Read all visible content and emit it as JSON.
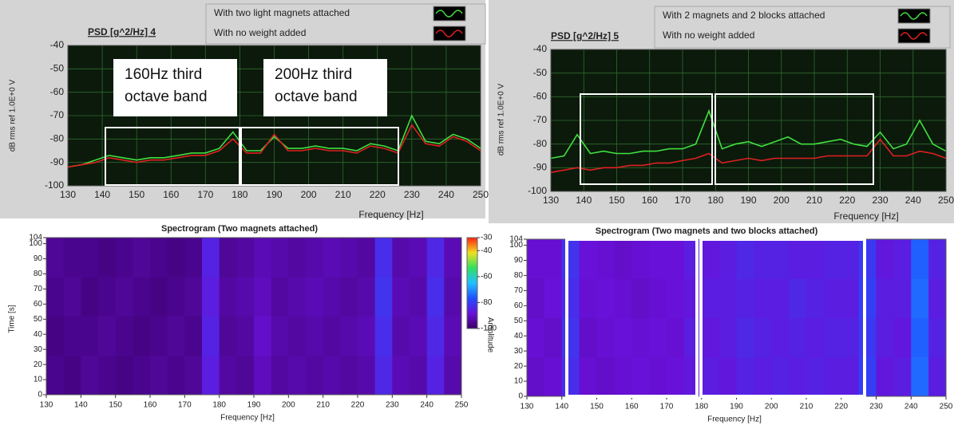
{
  "chart_data": [
    {
      "type": "line",
      "title": "PSD [g^2/Hz] 4",
      "x_label": "Frequency [Hz]",
      "y_label": "dB rms ref 1.0E+0 V",
      "x": [
        130,
        134,
        138,
        142,
        146,
        150,
        154,
        158,
        162,
        166,
        170,
        174,
        178,
        182,
        186,
        190,
        194,
        198,
        202,
        206,
        210,
        214,
        218,
        222,
        226,
        230,
        234,
        238,
        242,
        246,
        250
      ],
      "series": [
        {
          "name": "With two light magnets attached",
          "color": "#40e040",
          "values": [
            -92,
            -91,
            -89,
            -87,
            -88,
            -89,
            -88,
            -88,
            -87,
            -86,
            -86,
            -84,
            -77,
            -85,
            -85,
            -79,
            -84,
            -84,
            -83,
            -84,
            -84,
            -85,
            -82,
            -83,
            -85,
            -70,
            -81,
            -82,
            -78,
            -80,
            -84
          ]
        },
        {
          "name": "With no weight added",
          "color": "#e02020",
          "values": [
            -92,
            -91,
            -90,
            -88,
            -89,
            -90,
            -89,
            -89,
            -88,
            -87,
            -87,
            -85,
            -80,
            -86,
            -86,
            -78,
            -85,
            -85,
            -84,
            -85,
            -85,
            -86,
            -83,
            -84,
            -86,
            -74,
            -82,
            -83,
            -79,
            -81,
            -85
          ]
        }
      ],
      "xlim": [
        130,
        250
      ],
      "xticks": [
        130,
        140,
        150,
        160,
        170,
        180,
        190,
        200,
        210,
        220,
        230,
        240,
        250
      ],
      "ylim": [
        -100,
        -40
      ],
      "yticks": [
        -100,
        -90,
        -80,
        -70,
        -60,
        -50,
        -40
      ],
      "grid": true,
      "annotations": [
        "160Hz third octave band",
        "200Hz third octave band"
      ]
    },
    {
      "type": "line",
      "title": "PSD [g^2/Hz] 5",
      "x_label": "Frequency [Hz]",
      "y_label": "dB rms ref 1.0E+0 V",
      "x": [
        130,
        134,
        138,
        142,
        146,
        150,
        154,
        158,
        162,
        166,
        170,
        174,
        178,
        182,
        186,
        190,
        194,
        198,
        202,
        206,
        210,
        214,
        218,
        222,
        226,
        230,
        234,
        238,
        242,
        246,
        250
      ],
      "series": [
        {
          "name": "With 2 magnets and 2 blocks attached",
          "color": "#40e040",
          "values": [
            -86,
            -85,
            -76,
            -84,
            -83,
            -84,
            -84,
            -83,
            -83,
            -82,
            -82,
            -80,
            -66,
            -82,
            -80,
            -79,
            -81,
            -79,
            -77,
            -80,
            -80,
            -79,
            -78,
            -80,
            -81,
            -75,
            -82,
            -80,
            -70,
            -80,
            -83
          ]
        },
        {
          "name": "With no weight added",
          "color": "#e02020",
          "values": [
            -92,
            -91,
            -90,
            -91,
            -90,
            -90,
            -89,
            -89,
            -88,
            -88,
            -87,
            -86,
            -84,
            -88,
            -87,
            -86,
            -87,
            -86,
            -86,
            -86,
            -86,
            -85,
            -85,
            -85,
            -85,
            -78,
            -85,
            -85,
            -83,
            -84,
            -86
          ]
        }
      ],
      "xlim": [
        130,
        250
      ],
      "xticks": [
        130,
        140,
        150,
        160,
        170,
        180,
        190,
        200,
        210,
        220,
        230,
        240,
        250
      ],
      "ylim": [
        -100,
        -40
      ],
      "yticks": [
        -100,
        -90,
        -80,
        -70,
        -60,
        -50,
        -40
      ],
      "grid": true
    },
    {
      "type": "heatmap",
      "title": "Spectrogram (Two magnets attached)",
      "x_label": "Frequency [Hz]",
      "y_label": "Time [s]",
      "colorbar_label": "Amplitude",
      "x_bins": [
        130,
        135,
        140,
        145,
        150,
        155,
        160,
        165,
        170,
        175,
        180,
        185,
        190,
        195,
        200,
        205,
        210,
        215,
        220,
        225,
        230,
        235,
        240,
        245,
        250
      ],
      "y_bins": [
        0,
        26,
        52,
        78,
        104
      ],
      "z": [
        [
          -96,
          -97,
          -95,
          -96,
          -97,
          -96,
          -95,
          -96,
          -95,
          -86,
          -94,
          -95,
          -91,
          -94,
          -93,
          -94,
          -93,
          -94,
          -93,
          -84,
          -92,
          -93,
          -85,
          -93
        ],
        [
          -97,
          -96,
          -96,
          -95,
          -96,
          -97,
          -96,
          -95,
          -96,
          -85,
          -95,
          -94,
          -90,
          -93,
          -94,
          -93,
          -94,
          -93,
          -92,
          -83,
          -93,
          -92,
          -84,
          -92
        ],
        [
          -96,
          -95,
          -97,
          -96,
          -95,
          -96,
          -97,
          -96,
          -95,
          -86,
          -94,
          -93,
          -91,
          -94,
          -93,
          -92,
          -93,
          -94,
          -93,
          -82,
          -92,
          -93,
          -83,
          -93
        ],
        [
          -95,
          -96,
          -96,
          -97,
          -96,
          -95,
          -96,
          -97,
          -96,
          -85,
          -95,
          -94,
          -92,
          -93,
          -94,
          -93,
          -92,
          -93,
          -94,
          -83,
          -93,
          -92,
          -84,
          -92
        ]
      ],
      "colorscale": [
        "#3a0068",
        "#6a10d8",
        "#2050ff",
        "#20c0ff",
        "#30e060",
        "#f0e020",
        "#ff2010"
      ],
      "zlim": [
        -100,
        -30
      ],
      "zticks": [
        -30,
        -40,
        -60,
        -80,
        -100
      ],
      "xlim": [
        130,
        250
      ],
      "xticks": [
        130,
        140,
        150,
        160,
        170,
        180,
        190,
        200,
        210,
        220,
        230,
        240,
        250
      ],
      "ylim": [
        0,
        104
      ],
      "yticks": [
        0,
        10,
        20,
        30,
        40,
        50,
        60,
        70,
        80,
        90,
        100,
        104
      ]
    },
    {
      "type": "heatmap",
      "title": "Spectrogram (Two magnets and two blocks attached)",
      "x_label": "Frequency [Hz]",
      "x_bins": [
        130,
        135,
        140,
        145,
        150,
        155,
        160,
        165,
        170,
        175,
        180,
        185,
        190,
        195,
        200,
        205,
        210,
        215,
        220,
        225,
        230,
        235,
        240,
        245,
        250
      ],
      "y_bins": [
        0,
        26,
        52,
        78,
        104
      ],
      "z": [
        [
          -90,
          -89,
          -83,
          -89,
          -90,
          -89,
          -88,
          -89,
          -88,
          -87,
          -86,
          -87,
          -85,
          -86,
          -85,
          -86,
          -85,
          -86,
          -86,
          -80,
          -87,
          -86,
          -74,
          -86
        ],
        [
          -89,
          -90,
          -82,
          -90,
          -89,
          -88,
          -89,
          -88,
          -89,
          -86,
          -87,
          -86,
          -84,
          -85,
          -86,
          -85,
          -86,
          -85,
          -85,
          -81,
          -86,
          -87,
          -75,
          -85
        ],
        [
          -90,
          -88,
          -83,
          -89,
          -88,
          -89,
          -90,
          -89,
          -88,
          -87,
          -86,
          -86,
          -85,
          -86,
          -86,
          -84,
          -85,
          -86,
          -86,
          -80,
          -86,
          -86,
          -74,
          -86
        ],
        [
          -89,
          -89,
          -82,
          -88,
          -89,
          -90,
          -89,
          -88,
          -88,
          -86,
          -87,
          -86,
          -84,
          -85,
          -85,
          -86,
          -86,
          -85,
          -85,
          -81,
          -87,
          -86,
          -75,
          -85
        ]
      ],
      "colorscale": [
        "#3a0068",
        "#6a10d8",
        "#2050ff",
        "#20c0ff",
        "#30e060",
        "#f0e020",
        "#ff2010"
      ],
      "zlim": [
        -100,
        -30
      ],
      "xlim": [
        130,
        250
      ],
      "xticks": [
        130,
        140,
        150,
        160,
        170,
        180,
        190,
        200,
        210,
        220,
        230,
        240,
        250
      ],
      "ylim": [
        0,
        104
      ],
      "yticks": [
        0,
        10,
        20,
        30,
        40,
        50,
        60,
        70,
        80,
        90,
        100,
        104
      ]
    }
  ]
}
